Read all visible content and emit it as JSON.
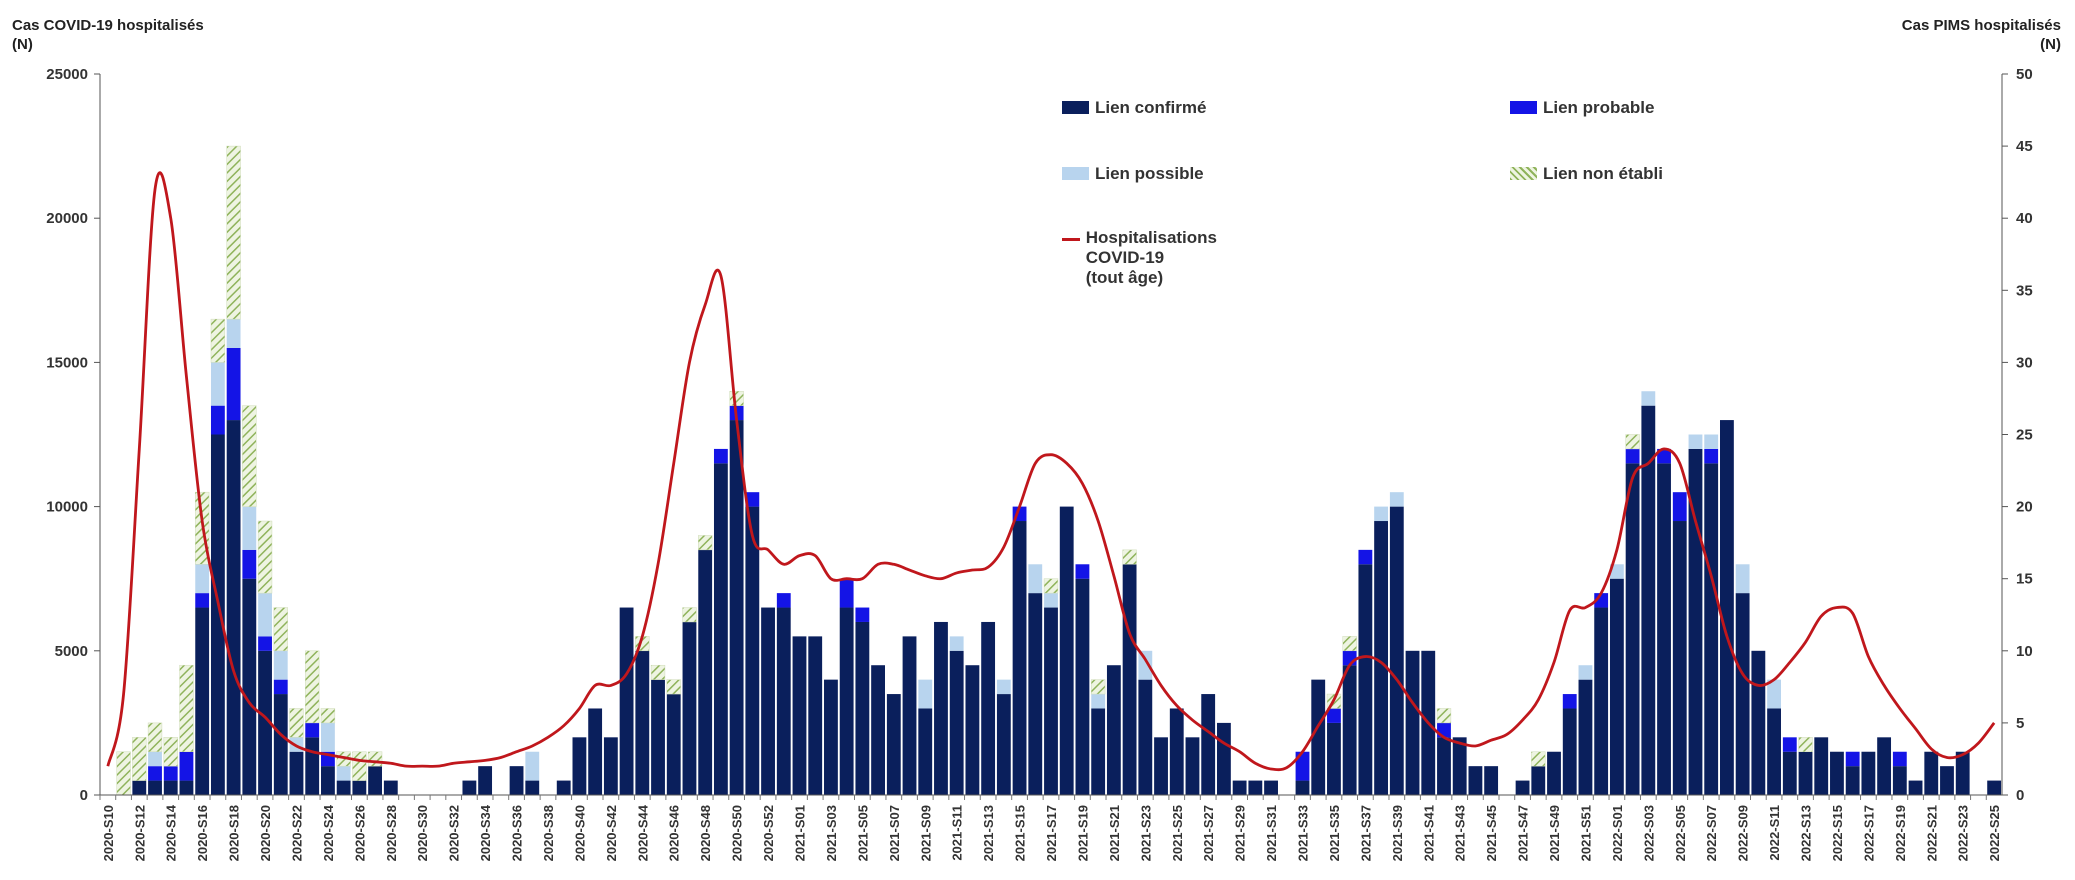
{
  "chart_data": {
    "type": "bar",
    "stacked": true,
    "left_axis_title": "Cas COVID-19 hospitalisés\n(N)",
    "right_axis_title": "Cas PIMS hospitalisés\n(N)",
    "ylim": [
      0,
      25000
    ],
    "y_ticks": [
      "0",
      "5000",
      "10000",
      "15000",
      "20000",
      "25000"
    ],
    "y2lim": [
      0,
      50
    ],
    "y2_ticks": [
      "0",
      "5",
      "10",
      "15",
      "20",
      "25",
      "30",
      "35",
      "40",
      "45",
      "50"
    ],
    "grid": false,
    "legend_position": "top-right",
    "categories": [
      "2020-S10",
      "2020-S11",
      "2020-S12",
      "2020-S13",
      "2020-S14",
      "2020-S15",
      "2020-S16",
      "2020-S17",
      "2020-S18",
      "2020-S19",
      "2020-S20",
      "2020-S21",
      "2020-S22",
      "2020-S23",
      "2020-S24",
      "2020-S25",
      "2020-S26",
      "2020-S27",
      "2020-S28",
      "2020-S29",
      "2020-S30",
      "2020-S31",
      "2020-S32",
      "2020-S33",
      "2020-S34",
      "2020-S35",
      "2020-S36",
      "2020-S37",
      "2020-S38",
      "2020-S39",
      "2020-S40",
      "2020-S41",
      "2020-S42",
      "2020-S43",
      "2020-S44",
      "2020-S45",
      "2020-S46",
      "2020-S47",
      "2020-S48",
      "2020-S49",
      "2020-S50",
      "2020-S51",
      "2020-S52",
      "2020-S53",
      "2021-S01",
      "2021-S02",
      "2021-S03",
      "2021-S04",
      "2021-S05",
      "2021-S06",
      "2021-S07",
      "2021-S08",
      "2021-S09",
      "2021-S10",
      "2021-S11",
      "2021-S12",
      "2021-S13",
      "2021-S14",
      "2021-S15",
      "2021-S16",
      "2021-S17",
      "2021-S18",
      "2021-S19",
      "2021-S20",
      "2021-S21",
      "2021-S22",
      "2021-S23",
      "2021-S24",
      "2021-S25",
      "2021-S26",
      "2021-S27",
      "2021-S28",
      "2021-S29",
      "2021-S30",
      "2021-S31",
      "2021-S32",
      "2021-S33",
      "2021-S34",
      "2021-S35",
      "2021-S36",
      "2021-S37",
      "2021-S38",
      "2021-S39",
      "2021-S40",
      "2021-S41",
      "2021-S42",
      "2021-S43",
      "2021-S44",
      "2021-S45",
      "2021-S46",
      "2021-S47",
      "2021-S48",
      "2021-S49",
      "2021-S50",
      "2021-S51",
      "2021-S52",
      "2022-S01",
      "2022-S02",
      "2022-S03",
      "2022-S04",
      "2022-S05",
      "2022-S06",
      "2022-S07",
      "2022-S08",
      "2022-S09",
      "2022-S10",
      "2022-S11",
      "2022-S12",
      "2022-S13",
      "2022-S14",
      "2022-S15",
      "2022-S16",
      "2022-S17",
      "2022-S18",
      "2022-S19",
      "2022-S20",
      "2022-S21",
      "2022-S22",
      "2022-S23",
      "2022-S24",
      "2022-S25"
    ],
    "series": [
      {
        "name": "Lien confirmé",
        "color": "#0a1f5c",
        "values": [
          0,
          0,
          1,
          1,
          1,
          1,
          13,
          25,
          26,
          15,
          10,
          7,
          3,
          4,
          2,
          1,
          1,
          2,
          1,
          0,
          0,
          0,
          0,
          1,
          2,
          0,
          2,
          1,
          0,
          1,
          4,
          6,
          4,
          13,
          10,
          8,
          7,
          12,
          17,
          23,
          26,
          20,
          13,
          13,
          11,
          11,
          8,
          13,
          12,
          9,
          7,
          11,
          6,
          12,
          10,
          9,
          12,
          7,
          19,
          14,
          13,
          20,
          15,
          6,
          9,
          16,
          8,
          4,
          6,
          4,
          7,
          5,
          1,
          1,
          1,
          0,
          1,
          8,
          5,
          9,
          16,
          19,
          20,
          10,
          10,
          4,
          4,
          2,
          2,
          0,
          1,
          2,
          3,
          6,
          8,
          13,
          15,
          23,
          27,
          23,
          19,
          24,
          23,
          26,
          14,
          10,
          6,
          3,
          3,
          4,
          3,
          2,
          3,
          4,
          2,
          1,
          3,
          2,
          3,
          0,
          1
        ]
      },
      {
        "name": "Lien probable",
        "color": "#1414e6",
        "values": [
          0,
          0,
          0,
          1,
          1,
          2,
          1,
          2,
          5,
          2,
          1,
          1,
          0,
          1,
          1,
          0,
          0,
          0,
          0,
          0,
          0,
          0,
          0,
          0,
          0,
          0,
          0,
          0,
          0,
          0,
          0,
          0,
          0,
          0,
          0,
          0,
          0,
          0,
          0,
          1,
          1,
          1,
          0,
          1,
          0,
          0,
          0,
          2,
          1,
          0,
          0,
          0,
          0,
          0,
          0,
          0,
          0,
          0,
          1,
          0,
          0,
          0,
          1,
          0,
          0,
          0,
          0,
          0,
          0,
          0,
          0,
          0,
          0,
          0,
          0,
          0,
          2,
          0,
          1,
          1,
          1,
          0,
          0,
          0,
          0,
          1,
          0,
          0,
          0,
          0,
          0,
          0,
          0,
          1,
          0,
          1,
          0,
          1,
          0,
          1,
          2,
          0,
          1,
          0,
          0,
          0,
          0,
          1,
          0,
          0,
          0,
          1,
          0,
          0,
          1,
          0,
          0,
          0,
          0,
          0,
          0
        ]
      },
      {
        "name": "Lien possible",
        "color": "#b8d4ee",
        "values": [
          0,
          0,
          0,
          1,
          0,
          0,
          2,
          3,
          2,
          3,
          3,
          2,
          1,
          0,
          2,
          1,
          0,
          0,
          0,
          0,
          0,
          0,
          0,
          0,
          0,
          0,
          0,
          2,
          0,
          0,
          0,
          0,
          0,
          0,
          0,
          0,
          0,
          0,
          0,
          0,
          0,
          0,
          0,
          0,
          0,
          0,
          0,
          0,
          0,
          0,
          0,
          0,
          2,
          0,
          1,
          0,
          0,
          1,
          0,
          2,
          1,
          0,
          0,
          1,
          0,
          0,
          2,
          0,
          0,
          0,
          0,
          0,
          0,
          0,
          0,
          0,
          0,
          0,
          0,
          0,
          0,
          1,
          1,
          0,
          0,
          0,
          0,
          0,
          0,
          0,
          0,
          0,
          0,
          0,
          1,
          0,
          1,
          0,
          1,
          0,
          0,
          1,
          1,
          0,
          2,
          0,
          2,
          0,
          0,
          0,
          0,
          0,
          0,
          0,
          0,
          0,
          0,
          0,
          0,
          0,
          0
        ]
      },
      {
        "name": "Lien non établi",
        "color": "#9bbf6a",
        "values": [
          0,
          3,
          3,
          2,
          2,
          6,
          5,
          3,
          12,
          7,
          5,
          3,
          2,
          5,
          1,
          1,
          2,
          1,
          0,
          0,
          0,
          0,
          0,
          0,
          0,
          0,
          0,
          0,
          0,
          0,
          0,
          0,
          0,
          0,
          1,
          1,
          1,
          1,
          1,
          0,
          1,
          0,
          0,
          0,
          0,
          0,
          0,
          0,
          0,
          0,
          0,
          0,
          0,
          0,
          0,
          0,
          0,
          0,
          0,
          0,
          1,
          0,
          0,
          1,
          0,
          1,
          0,
          0,
          0,
          0,
          0,
          0,
          0,
          0,
          0,
          0,
          0,
          0,
          1,
          1,
          0,
          0,
          0,
          0,
          0,
          1,
          0,
          0,
          0,
          0,
          0,
          1,
          0,
          0,
          0,
          0,
          0,
          1,
          0,
          0,
          0,
          0,
          0,
          0,
          0,
          0,
          0,
          0,
          1,
          0,
          0,
          0,
          0,
          0,
          0,
          0,
          0,
          0,
          0,
          0,
          0
        ]
      }
    ],
    "line_series": {
      "name": "Hospitalisations COVID-19\n(tout âge)",
      "color": "#c0171c",
      "axis": "left",
      "values": [
        1000,
        3500,
        12000,
        21000,
        20000,
        14500,
        9500,
        6700,
        4300,
        3200,
        2700,
        2100,
        1700,
        1500,
        1400,
        1300,
        1200,
        1150,
        1100,
        1000,
        1000,
        1000,
        1100,
        1150,
        1200,
        1300,
        1500,
        1700,
        2000,
        2400,
        3000,
        3800,
        3800,
        4200,
        5500,
        8000,
        11500,
        15000,
        17000,
        18000,
        13000,
        9000,
        8500,
        8000,
        8300,
        8300,
        7500,
        7500,
        7500,
        8000,
        8000,
        7800,
        7600,
        7500,
        7700,
        7800,
        7900,
        8600,
        10000,
        11500,
        11800,
        11500,
        10800,
        9500,
        7600,
        5600,
        4700,
        3800,
        3100,
        2600,
        2200,
        1800,
        1500,
        1100,
        900,
        950,
        1500,
        2400,
        3300,
        4500,
        4800,
        4600,
        4000,
        3200,
        2500,
        2000,
        1800,
        1700,
        1900,
        2100,
        2600,
        3300,
        4600,
        6400,
        6500,
        7000,
        8500,
        11000,
        11500,
        12000,
        11500,
        9500,
        7600,
        5500,
        4200,
        3800,
        4000,
        4600,
        5300,
        6200,
        6500,
        6300,
        4800,
        3800,
        3000,
        2300,
        1600,
        1300,
        1400,
        1800,
        2500
      ]
    },
    "legend": [
      {
        "label": "Lien confirmé",
        "kind": "solid",
        "color": "#0a1f5c"
      },
      {
        "label": "Lien probable",
        "kind": "solid",
        "color": "#1414e6"
      },
      {
        "label": "Lien possible",
        "kind": "solid",
        "color": "#b8d4ee"
      },
      {
        "label": "Lien non établi",
        "kind": "hatched",
        "color": "#9bbf6a"
      },
      {
        "label": "Hospitalisations COVID-19\n(tout âge)",
        "kind": "line",
        "color": "#c0171c"
      }
    ]
  }
}
